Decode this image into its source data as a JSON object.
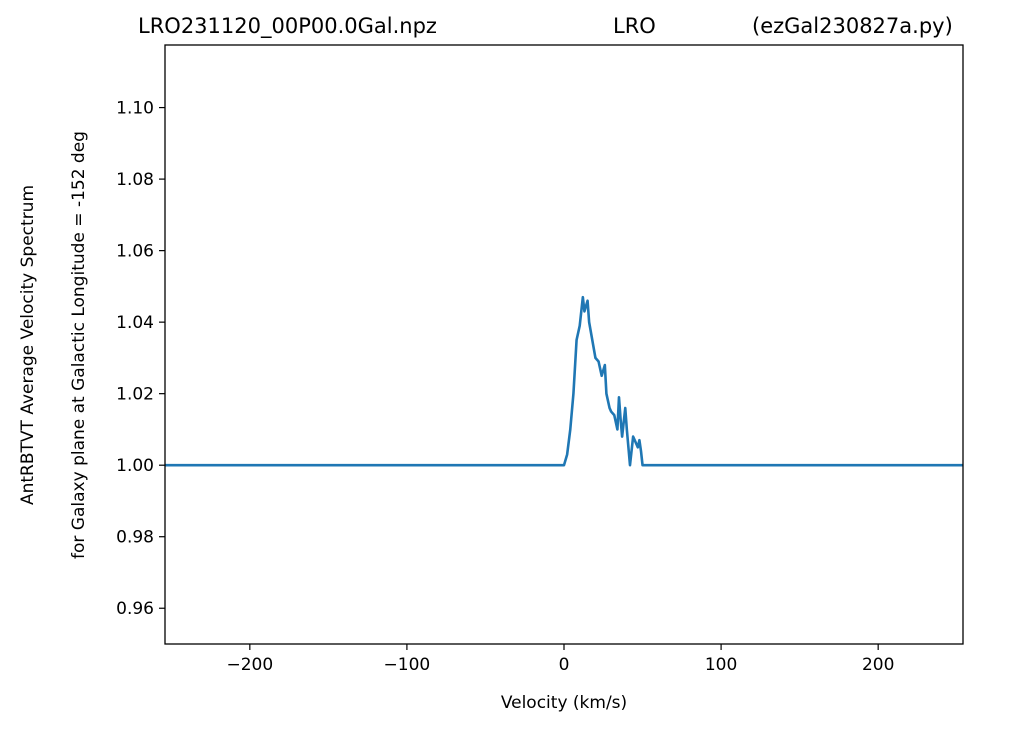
{
  "chart_data": {
    "type": "line",
    "title_left": "LRO231120_00P00.0Gal.npz",
    "title_center": "LRO",
    "title_right": "(ezGal230827a.py)",
    "xlabel": "Velocity (km/s)",
    "ylabel_line1": "AntRBTVT Average Velocity Spectrum",
    "ylabel_line2": "for Galaxy plane at Galactic Longitude = -152 deg",
    "xlim": [
      -254,
      254
    ],
    "ylim": [
      0.95,
      1.1175
    ],
    "x_ticks": [
      -200,
      -100,
      0,
      100,
      200
    ],
    "x_tick_labels": [
      "−200",
      "−100",
      "0",
      "100",
      "200"
    ],
    "y_ticks": [
      0.96,
      0.98,
      1.0,
      1.02,
      1.04,
      1.06,
      1.08,
      1.1
    ],
    "y_tick_labels": [
      "0.96",
      "0.98",
      "1.00",
      "1.02",
      "1.04",
      "1.06",
      "1.08",
      "1.10"
    ],
    "grid": false,
    "line_color": "#1f77b4",
    "series": [
      {
        "x": [
          -254,
          -2,
          0,
          2,
          4,
          6,
          8,
          10,
          12,
          13,
          15,
          16,
          18,
          20,
          22,
          24,
          26,
          27,
          29,
          30,
          32,
          34,
          35,
          36,
          37,
          38,
          39,
          40,
          41,
          42,
          44,
          45,
          46,
          47,
          48,
          49,
          50,
          52,
          54,
          254
        ],
        "y": [
          1.0,
          1.0,
          1.0,
          1.003,
          1.01,
          1.02,
          1.035,
          1.039,
          1.047,
          1.043,
          1.046,
          1.04,
          1.035,
          1.03,
          1.029,
          1.025,
          1.028,
          1.02,
          1.016,
          1.015,
          1.014,
          1.01,
          1.019,
          1.013,
          1.008,
          1.012,
          1.016,
          1.01,
          1.005,
          1.0,
          1.008,
          1.007,
          1.006,
          1.005,
          1.007,
          1.004,
          1.0,
          1.0,
          1.0,
          1.0
        ]
      }
    ]
  }
}
